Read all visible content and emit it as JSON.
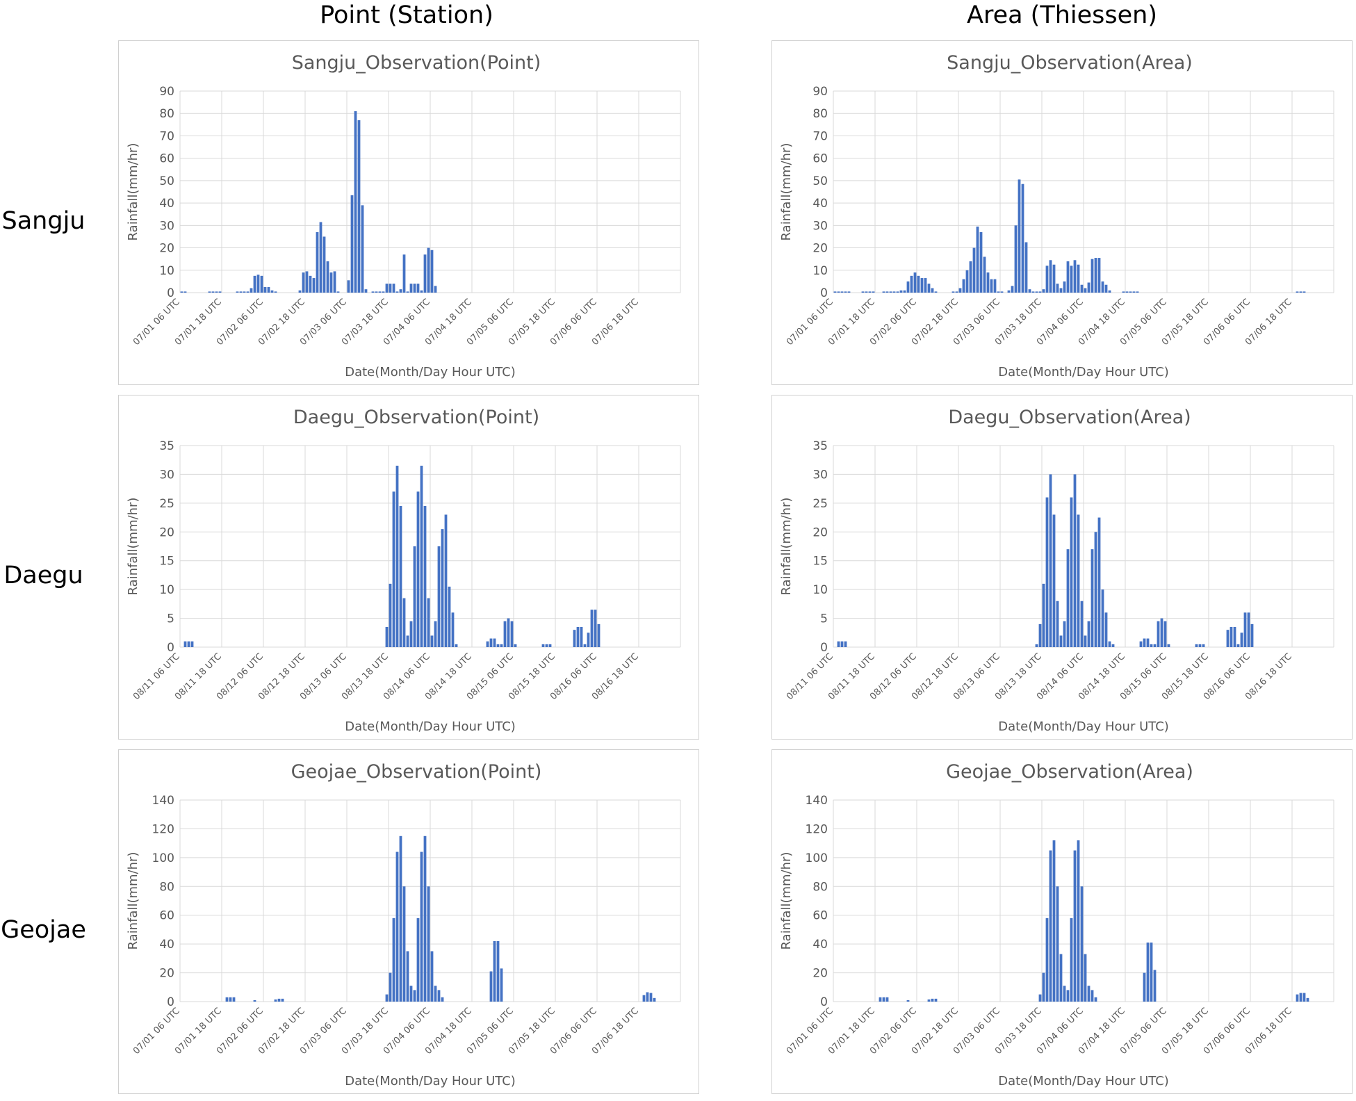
{
  "column_headers": [
    "Point (Station)",
    "Area (Thiessen)"
  ],
  "row_labels": [
    "Sangju",
    "Daegu",
    "Geojae"
  ],
  "colors": {
    "bar": "#4472c4",
    "grid": "#d9d9d9",
    "text": "#595959"
  },
  "chart_data": [
    {
      "type": "bar",
      "title": "Sangju_Observation(Point)",
      "xlabel": "Date(Month/Day Hour UTC)",
      "ylabel": "Rainfall(mm/hr)",
      "ylim": [
        0,
        90
      ],
      "yticks": [
        0,
        10,
        20,
        30,
        40,
        50,
        60,
        70,
        80,
        90
      ],
      "xticks": [
        "07/01 06 UTC",
        "07/01 18 UTC",
        "07/02 06 UTC",
        "07/02 18 UTC",
        "07/03 06 UTC",
        "07/03 18 UTC",
        "07/04 06 UTC",
        "07/04 18 UTC",
        "07/05 06 UTC",
        "07/05 18 UTC",
        "07/06 06 UTC",
        "07/06 18 UTC"
      ],
      "grid": true,
      "bars_per_tick": 12,
      "values": [
        0.5,
        0.5,
        0,
        0,
        0,
        0,
        0,
        0,
        0.5,
        0.5,
        0.5,
        0.5,
        0,
        0,
        0,
        0,
        0.5,
        0.5,
        0.5,
        0.5,
        2,
        7.5,
        8,
        7.5,
        2.5,
        2.5,
        1,
        0.5,
        0,
        0,
        0,
        0,
        0,
        0,
        1,
        9,
        9.5,
        7.5,
        6.5,
        27,
        31.5,
        25,
        14,
        9,
        9.5,
        0.5,
        0,
        0,
        5.5,
        43.5,
        81,
        77,
        39,
        1.5,
        0,
        0.5,
        0.5,
        0.5,
        0.5,
        4,
        4,
        4,
        0.5,
        1.5,
        17,
        0.5,
        4,
        4,
        4,
        1,
        17,
        20,
        19,
        3
      ]
    },
    {
      "type": "bar",
      "title": "Sangju_Observation(Area)",
      "xlabel": "Date(Month/Day Hour UTC)",
      "ylabel": "Rainfall(mm/hr)",
      "ylim": [
        0,
        90
      ],
      "yticks": [
        0,
        10,
        20,
        30,
        40,
        50,
        60,
        70,
        80,
        90
      ],
      "xticks": [
        "07/01 06 UTC",
        "07/01 18 UTC",
        "07/02 06 UTC",
        "07/02 18 UTC",
        "07/03 06 UTC",
        "07/03 18 UTC",
        "07/04 06 UTC",
        "07/04 18 UTC",
        "07/05 06 UTC",
        "07/05 18 UTC",
        "07/06 06 UTC",
        "07/06 18 UTC"
      ],
      "grid": true,
      "bars_per_tick": 12,
      "values": [
        0.5,
        0.5,
        0.5,
        0.5,
        0.5,
        0,
        0,
        0,
        0.5,
        0.5,
        0.5,
        0.5,
        0,
        0,
        0.5,
        0.5,
        0.5,
        0.5,
        0.5,
        1,
        1,
        5,
        7.5,
        9,
        7.5,
        6.5,
        6.5,
        4,
        2,
        0.5,
        0,
        0,
        0,
        0,
        0.5,
        0.5,
        2,
        6,
        10,
        14,
        20,
        29.5,
        27,
        16,
        9,
        6,
        6,
        0.5,
        0.5,
        0,
        1,
        3,
        30,
        50.5,
        48.5,
        22.5,
        1.5,
        0.5,
        0.5,
        0.5,
        1.5,
        12,
        14.5,
        12.5,
        4,
        2,
        5,
        14,
        12,
        14.5,
        12.5,
        3.5,
        2,
        4.5,
        15,
        15.5,
        15.5,
        5,
        3.5,
        1,
        0,
        0,
        0,
        0.5,
        0.5,
        0.5,
        0.5,
        0.5,
        0,
        0,
        0,
        0,
        0,
        0,
        0,
        0,
        0,
        0,
        0,
        0,
        0,
        0,
        0,
        0,
        0,
        0,
        0,
        0,
        0,
        0,
        0,
        0,
        0,
        0,
        0,
        0,
        0,
        0,
        0,
        0,
        0,
        0,
        0,
        0,
        0,
        0,
        0,
        0,
        0,
        0,
        0,
        0,
        0,
        0.5,
        0.5,
        0.5
      ]
    },
    {
      "type": "bar",
      "title": "Daegu_Observation(Point)",
      "xlabel": "Date(Month/Day Hour UTC)",
      "ylabel": "Rainfall(mm/hr)",
      "ylim": [
        0,
        35
      ],
      "yticks": [
        0,
        5,
        10,
        15,
        20,
        25,
        30,
        35
      ],
      "xticks": [
        "08/11 06 UTC",
        "08/11 18 UTC",
        "08/12 06 UTC",
        "08/12 18 UTC",
        "08/13 06 UTC",
        "08/13 18 UTC",
        "08/14 06 UTC",
        "08/14 18 UTC",
        "08/15 06 UTC",
        "08/15 18 UTC",
        "08/16 06 UTC",
        "08/16 18 UTC"
      ],
      "grid": true,
      "bars_per_tick": 12,
      "values": [
        0,
        1,
        1,
        1,
        0,
        0,
        0,
        0,
        0,
        0,
        0,
        0,
        0,
        0,
        0,
        0,
        0,
        0,
        0,
        0,
        0,
        0,
        0,
        0,
        0,
        0,
        0,
        0,
        0,
        0,
        0,
        0,
        0,
        0,
        0,
        0,
        0,
        0,
        0,
        0,
        0,
        0,
        0,
        0,
        0,
        0,
        0,
        0,
        0,
        0,
        0,
        0,
        0,
        0,
        0,
        0,
        0,
        0,
        0,
        3.5,
        11,
        27,
        31.5,
        24.5,
        8.5,
        2,
        4.5,
        17.5,
        27,
        31.5,
        24.5,
        8.5,
        2,
        4.5,
        17.5,
        20.5,
        23,
        10.5,
        6,
        0.5,
        0,
        0,
        0,
        0,
        0,
        0,
        0,
        0,
        1,
        1.5,
        1.5,
        0.5,
        0.5,
        4.5,
        5,
        4.5,
        0.5,
        0,
        0,
        0,
        0,
        0,
        0,
        0,
        0.5,
        0.5,
        0.5,
        0,
        0,
        0,
        0,
        0,
        0,
        3,
        3.5,
        3.5,
        0.5,
        2.5,
        6.5,
        6.5,
        4,
        0,
        0,
        0,
        0,
        0,
        0,
        0,
        0,
        0,
        0,
        0,
        0,
        0
      ]
    },
    {
      "type": "bar",
      "title": "Daegu_Observation(Area)",
      "xlabel": "Date(Month/Day Hour UTC)",
      "ylabel": "Rainfall(mm/hr)",
      "ylim": [
        0,
        35
      ],
      "yticks": [
        0,
        5,
        10,
        15,
        20,
        25,
        30,
        35
      ],
      "xticks": [
        "08/11 06 UTC",
        "08/11 18 UTC",
        "08/12 06 UTC",
        "08/12 18 UTC",
        "08/13 06 UTC",
        "08/13 18 UTC",
        "08/14 06 UTC",
        "08/14 18 UTC",
        "08/15 06 UTC",
        "08/15 18 UTC",
        "08/16 06 UTC",
        "08/16 18 UTC"
      ],
      "grid": true,
      "bars_per_tick": 12,
      "values": [
        0,
        1,
        1,
        1,
        0,
        0,
        0,
        0,
        0,
        0,
        0,
        0,
        0,
        0,
        0,
        0,
        0,
        0,
        0,
        0,
        0,
        0,
        0,
        0,
        0,
        0,
        0,
        0,
        0,
        0,
        0,
        0,
        0,
        0,
        0,
        0,
        0,
        0,
        0,
        0,
        0,
        0,
        0,
        0,
        0,
        0,
        0,
        0,
        0,
        0,
        0,
        0,
        0,
        0,
        0,
        0,
        0,
        0,
        0.5,
        4,
        11,
        26,
        30,
        23,
        8,
        2,
        4.5,
        17,
        26,
        30,
        23,
        8,
        2,
        4.5,
        17,
        20,
        22.5,
        10,
        6,
        1,
        0.5,
        0,
        0,
        0,
        0,
        0,
        0,
        0,
        1,
        1.5,
        1.5,
        0.5,
        0.5,
        4.5,
        5,
        4.5,
        0.5,
        0,
        0,
        0,
        0,
        0,
        0,
        0,
        0.5,
        0.5,
        0.5,
        0,
        0,
        0,
        0,
        0,
        0,
        3,
        3.5,
        3.5,
        0.5,
        2.5,
        6,
        6,
        4,
        0,
        0,
        0,
        0,
        0,
        0,
        0,
        0,
        0,
        0,
        0,
        0,
        0
      ]
    },
    {
      "type": "bar",
      "title": "Geojae_Observation(Point)",
      "xlabel": "Date(Month/Day Hour UTC)",
      "ylabel": "Rainfall(mm/hr)",
      "ylim": [
        0,
        140
      ],
      "yticks": [
        0,
        20,
        40,
        60,
        80,
        100,
        120,
        140
      ],
      "xticks": [
        "07/01 06 UTC",
        "07/01 18 UTC",
        "07/02 06 UTC",
        "07/02 18 UTC",
        "07/03 06 UTC",
        "07/03 18 UTC",
        "07/04 06 UTC",
        "07/04 18 UTC",
        "07/05 06 UTC",
        "07/05 18 UTC",
        "07/06 06 UTC",
        "07/06 18 UTC"
      ],
      "grid": true,
      "bars_per_tick": 12,
      "values": [
        0,
        0,
        0,
        0,
        0,
        0,
        0,
        0,
        0,
        0,
        0,
        0,
        0,
        3,
        3,
        3,
        0,
        0,
        0,
        0,
        0,
        1,
        0,
        0,
        0,
        0,
        0,
        1.5,
        2,
        2,
        0,
        0,
        0,
        0,
        0,
        0,
        0,
        0,
        0,
        0,
        0,
        0,
        0,
        0,
        0,
        0,
        0,
        0,
        0,
        0,
        0,
        0,
        0,
        0,
        0,
        0,
        0,
        0,
        0,
        5,
        20,
        58,
        104,
        115,
        80,
        35,
        11,
        8,
        58,
        104,
        115,
        80,
        35,
        11,
        8,
        3,
        0,
        0,
        0,
        0,
        0,
        0,
        0,
        0,
        0,
        0,
        0,
        0,
        0,
        21,
        42,
        42,
        23,
        0,
        0,
        0,
        0,
        0,
        0,
        0,
        0,
        0,
        0,
        0,
        0,
        0,
        0,
        0,
        0,
        0,
        0,
        0,
        0,
        0,
        0,
        0,
        0,
        0,
        0,
        0,
        0,
        0,
        0,
        0,
        0,
        0,
        0,
        0,
        0,
        0,
        0,
        0,
        0,
        4.5,
        6.5,
        6,
        2.5
      ]
    },
    {
      "type": "bar",
      "title": "Geojae_Observation(Area)",
      "xlabel": "Date(Month/Day Hour UTC)",
      "ylabel": "Rainfall(mm/hr)",
      "ylim": [
        0,
        140
      ],
      "yticks": [
        0,
        20,
        40,
        60,
        80,
        100,
        120,
        140
      ],
      "xticks": [
        "07/01 06 UTC",
        "07/01 18 UTC",
        "07/02 06 UTC",
        "07/02 18 UTC",
        "07/03 06 UTC",
        "07/03 18 UTC",
        "07/04 06 UTC",
        "07/04 18 UTC",
        "07/05 06 UTC",
        "07/05 18 UTC",
        "07/06 06 UTC",
        "07/06 18 UTC"
      ],
      "grid": true,
      "bars_per_tick": 12,
      "values": [
        0,
        0,
        0,
        0,
        0,
        0,
        0,
        0,
        0,
        0,
        0,
        0,
        0,
        3,
        3,
        3,
        0,
        0,
        0,
        0,
        0,
        1,
        0,
        0,
        0,
        0,
        0,
        1.5,
        2,
        2,
        0,
        0,
        0,
        0,
        0,
        0,
        0,
        0,
        0,
        0,
        0,
        0,
        0,
        0,
        0,
        0,
        0,
        0,
        0,
        0,
        0,
        0,
        0,
        0,
        0,
        0,
        0,
        0,
        0,
        5,
        20,
        58,
        105,
        112,
        80,
        33,
        11,
        8,
        58,
        105,
        112,
        80,
        33,
        11,
        8,
        3,
        0,
        0,
        0,
        0,
        0,
        0,
        0,
        0,
        0,
        0,
        0,
        0,
        0,
        20,
        41,
        41,
        22,
        0,
        0,
        0,
        0,
        0,
        0,
        0,
        0,
        0,
        0,
        0,
        0,
        0,
        0,
        0,
        0,
        0,
        0,
        0,
        0,
        0,
        0,
        0,
        0,
        0,
        0,
        0,
        0,
        0,
        0,
        0,
        0,
        0,
        0,
        0,
        0,
        0,
        0,
        0,
        0,
        5,
        6,
        6,
        2.5
      ]
    }
  ]
}
